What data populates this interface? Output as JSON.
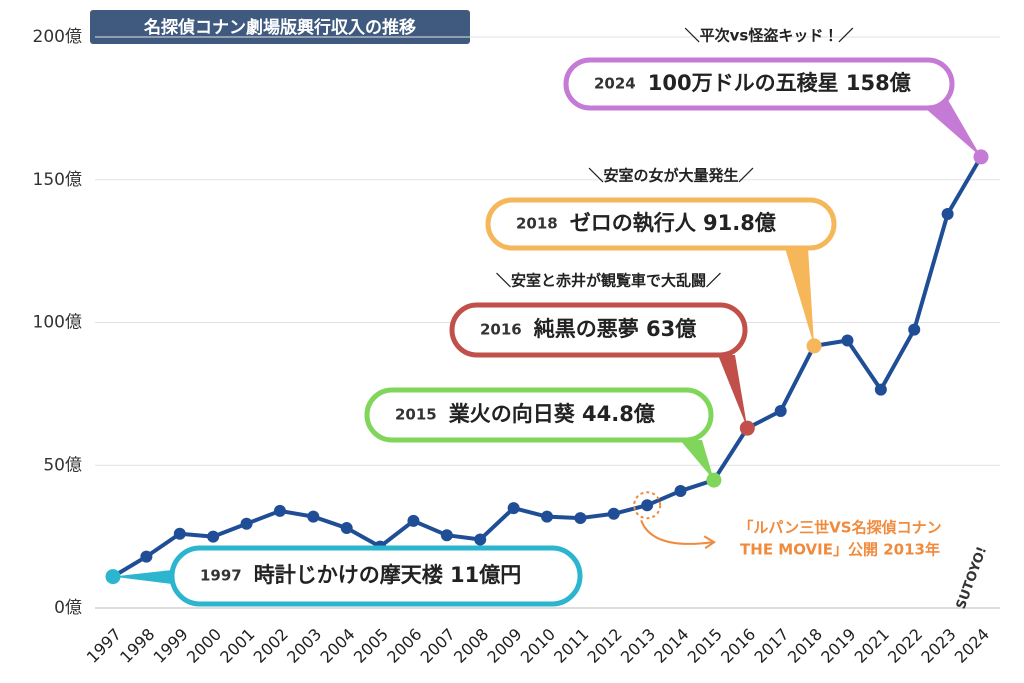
{
  "chart_data": {
    "type": "line",
    "title": "名探偵コナン劇場版興行収入の推移",
    "categories": [
      "1997",
      "1998",
      "1999",
      "2000",
      "2001",
      "2002",
      "2003",
      "2004",
      "2005",
      "2006",
      "2007",
      "2008",
      "2009",
      "2010",
      "2011",
      "2012",
      "2013",
      "2014",
      "2015",
      "2016",
      "2017",
      "2018",
      "2019",
      "2021",
      "2022",
      "2023",
      "2024"
    ],
    "values": [
      11,
      18,
      26,
      25,
      29.5,
      34,
      32,
      28,
      21.5,
      30.5,
      25.5,
      24,
      35,
      32,
      31.5,
      33,
      36,
      41,
      44.8,
      63,
      69,
      91.8,
      93.7,
      76.5,
      97.5,
      138,
      158
    ],
    "color": "#1f4e96",
    "ylim": [
      0,
      200
    ],
    "yticks": [
      {
        "value": 0,
        "label": "0億"
      },
      {
        "value": 50,
        "label": "50億"
      },
      {
        "value": 100,
        "label": "100億"
      },
      {
        "value": 150,
        "label": "150億"
      },
      {
        "value": 200,
        "label": "200億"
      }
    ],
    "grid": true,
    "annotations": [
      {
        "year": "1997",
        "text": "時計じかけの摩天楼 11億円",
        "color": "#2bb5cf"
      },
      {
        "year": "2015",
        "text": "業火の向日葵 44.8億",
        "color": "#7fd65a"
      },
      {
        "year": "2016",
        "text": "純黒の悪夢 63億",
        "color": "#c1504a",
        "subtitle": "＼安室と赤井が観覧車で大乱闘／"
      },
      {
        "year": "2018",
        "text": "ゼロの執行人 91.8億",
        "color": "#f6b75a",
        "subtitle": "＼安室の女が大量発生／"
      },
      {
        "year": "2024",
        "text": "100万ドルの五稜星 158億",
        "color": "#c57ad6",
        "subtitle": "＼平次vs怪盗キッド！／"
      }
    ],
    "note": {
      "year": "2013",
      "lines": [
        "「ルパン三世VS名探偵コナン",
        "THE MOVIE」公開 2013年"
      ],
      "color": "#f08a3c"
    },
    "watermark": "SUTOYO!"
  }
}
